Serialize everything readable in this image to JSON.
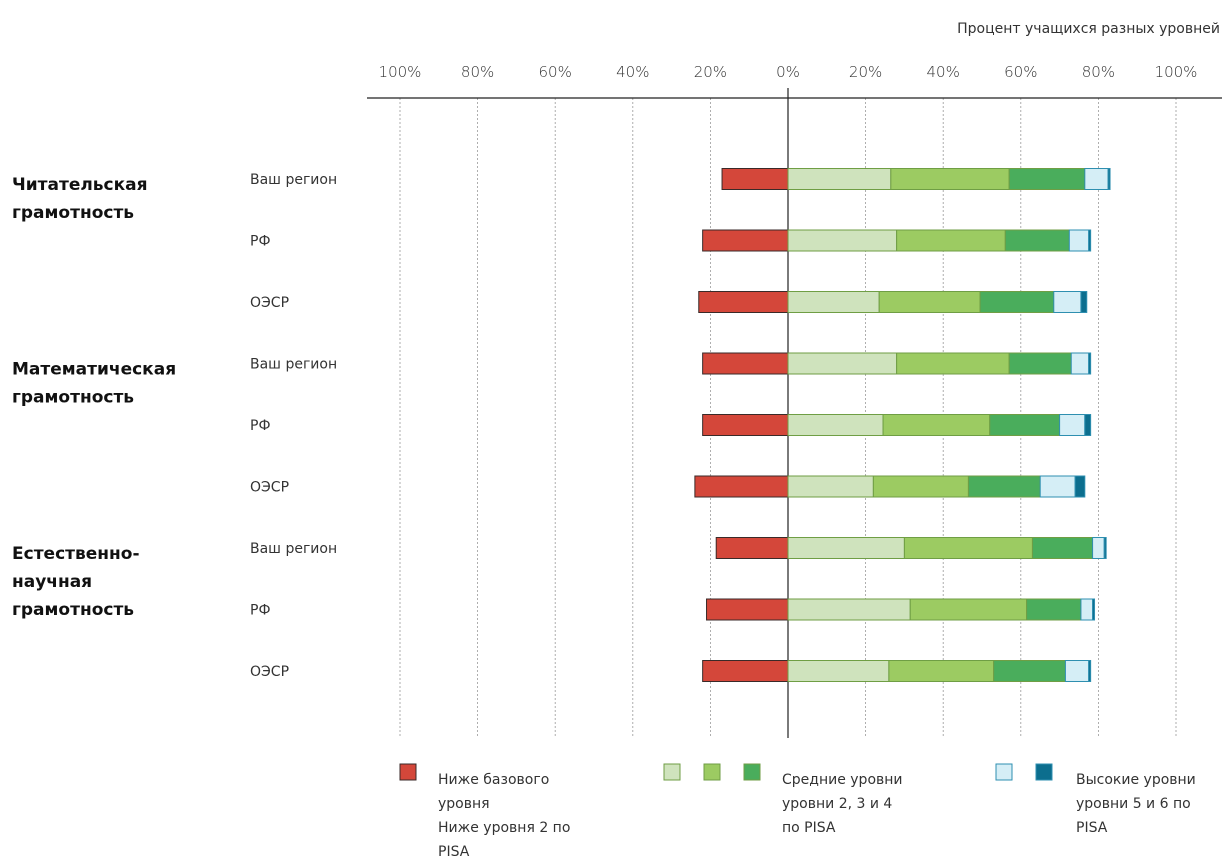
{
  "chart_data": {
    "type": "bar",
    "orientation": "horizontal",
    "stacked": true,
    "diverging": true,
    "axis_caption": "Процент учащихся разных уровней",
    "ticks_left": [
      "100%",
      "80%",
      "60%",
      "40%",
      "20%"
    ],
    "ticks_right": [
      "0%",
      "20%",
      "40%",
      "60%",
      "80%",
      "100%"
    ],
    "xlim": [
      -100,
      100
    ],
    "grid": true,
    "legend_position": "bottom",
    "groups": [
      {
        "label_lines": [
          "Читательская",
          "грамотность"
        ],
        "rows": [
          {
            "label": "Ваш регион",
            "below2": 17,
            "l2": 26.5,
            "l3": 30.5,
            "l4": 19.5,
            "l5": 6,
            "l6": 0.5
          },
          {
            "label": "РФ",
            "below2": 22,
            "l2": 28,
            "l3": 28,
            "l4": 16.5,
            "l5": 5,
            "l6": 0.5
          },
          {
            "label": "ОЭСР",
            "below2": 23,
            "l2": 23.5,
            "l3": 26,
            "l4": 19,
            "l5": 7,
            "l6": 1.5
          }
        ]
      },
      {
        "label_lines": [
          "Математическая",
          "грамотность"
        ],
        "rows": [
          {
            "label": "Ваш регион",
            "below2": 22,
            "l2": 28,
            "l3": 29,
            "l4": 16,
            "l5": 4.5,
            "l6": 0.5
          },
          {
            "label": "РФ",
            "below2": 22,
            "l2": 24.5,
            "l3": 27.5,
            "l4": 18,
            "l5": 6.5,
            "l6": 1.5
          },
          {
            "label": "ОЭСР",
            "below2": 24,
            "l2": 22,
            "l3": 24.5,
            "l4": 18.5,
            "l5": 9,
            "l6": 2.5
          }
        ]
      },
      {
        "label_lines": [
          "Естественно-",
          "научная",
          "грамотность"
        ],
        "rows": [
          {
            "label": "Ваш регион",
            "below2": 18.5,
            "l2": 30,
            "l3": 33,
            "l4": 15.5,
            "l5": 3,
            "l6": 0.5
          },
          {
            "label": "РФ",
            "below2": 21,
            "l2": 31.5,
            "l3": 30,
            "l4": 14,
            "l5": 3,
            "l6": 0.5
          },
          {
            "label": "ОЭСР",
            "below2": 22,
            "l2": 26,
            "l3": 27,
            "l4": 18.5,
            "l5": 6,
            "l6": 0.5
          }
        ]
      }
    ],
    "colors": {
      "below2": "#d4473a",
      "l2": "#cfe3bd",
      "l3": "#9ccb62",
      "l4": "#4aad5c",
      "l5": "#d5eef6",
      "l6": "#0c6e8e"
    },
    "strokes": {
      "below2": "#3a2a28",
      "green": "#6f9e44",
      "blue": "#2e8fb0"
    },
    "legend": [
      {
        "swatches": [
          "below2"
        ],
        "lines": [
          "Ниже базового",
          "уровня",
          " Ниже уровня 2 по",
          "PISA"
        ]
      },
      {
        "swatches": [
          "l2",
          "l3",
          "l4"
        ],
        "lines": [
          "Средние уровни",
          " уровни 2, 3 и 4",
          "по PISA"
        ]
      },
      {
        "swatches": [
          "l5",
          "l6"
        ],
        "lines": [
          "Высокие уровни",
          " уровни 5 и 6 по",
          "PISA"
        ]
      }
    ]
  }
}
